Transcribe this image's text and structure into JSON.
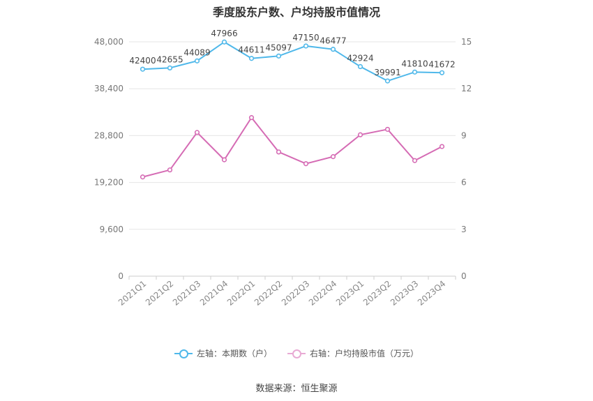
{
  "chart_data": {
    "type": "line",
    "title": "季度股东户数、户均持股市值情况",
    "categories": [
      "2021Q1",
      "2021Q2",
      "2021Q3",
      "2021Q4",
      "2022Q1",
      "2022Q2",
      "2022Q3",
      "2022Q4",
      "2023Q1",
      "2023Q2",
      "2023Q3",
      "2023Q4"
    ],
    "left_axis": {
      "ticks": [
        "0",
        "9,600",
        "19,200",
        "28,800",
        "38,400",
        "48,000"
      ],
      "ylim": [
        0,
        48000
      ]
    },
    "right_axis": {
      "ticks": [
        "0",
        "3",
        "6",
        "9",
        "12",
        "15"
      ],
      "ylim": [
        0,
        15
      ]
    },
    "series": [
      {
        "name": "左轴：本期数（户）",
        "axis": "left",
        "color": "#4fb8ea",
        "values": [
          42400,
          42655,
          44089,
          47966,
          44611,
          45097,
          47150,
          46477,
          42924,
          39991,
          41810,
          41672
        ],
        "labels": [
          "42400",
          "42655",
          "44089",
          "47966",
          "44611",
          "45097",
          "47150",
          "46477",
          "42924",
          "39991",
          "41810",
          "41672"
        ]
      },
      {
        "name": "右轴：户均持股市值（万元）",
        "axis": "right",
        "color": "#d56bb4",
        "values": [
          6.35,
          6.8,
          9.2,
          7.45,
          10.15,
          7.95,
          7.2,
          7.65,
          9.05,
          9.4,
          7.4,
          8.3
        ]
      }
    ],
    "grid": true,
    "legend_position": "bottom"
  },
  "source": "数据来源：恒生聚源"
}
